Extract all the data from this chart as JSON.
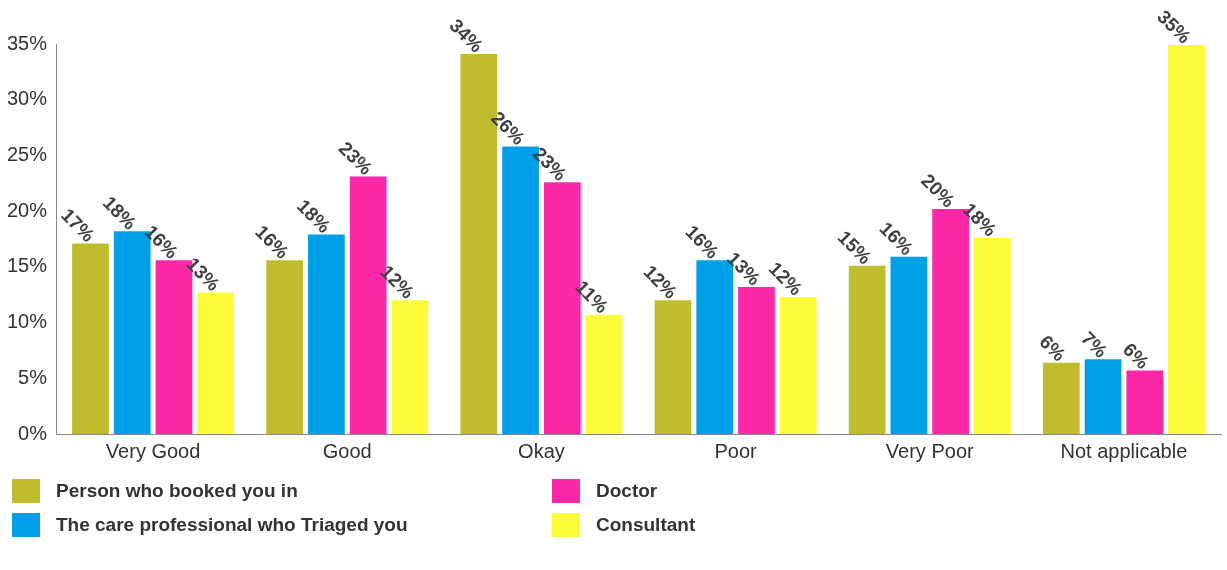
{
  "chart_data": {
    "type": "bar",
    "categories": [
      "Very Good",
      "Good",
      "Okay",
      "Poor",
      "Very Poor",
      "Not applicable"
    ],
    "series": [
      {
        "name": "Person who booked you in",
        "color": "#c0bc2f",
        "values": [
          17.1,
          15.6,
          34.1,
          12.0,
          15.1,
          6.4
        ],
        "value_labels": [
          "17%",
          "16%",
          "34%",
          "12%",
          "15%",
          "6%"
        ]
      },
      {
        "name": "The care professional who Triaged you",
        "color": "#00a0e8",
        "values": [
          18.2,
          17.9,
          25.8,
          15.6,
          15.9,
          6.7
        ],
        "value_labels": [
          "18%",
          "18%",
          "26%",
          "16%",
          "16%",
          "7%"
        ]
      },
      {
        "name": "Doctor",
        "color": "#fb29a8",
        "values": [
          15.6,
          23.1,
          22.6,
          13.2,
          20.2,
          5.7
        ],
        "value_labels": [
          "16%",
          "23%",
          "23%",
          "13%",
          "20%",
          "6%"
        ]
      },
      {
        "name": "Consultant",
        "color": "#fdfc3a",
        "values": [
          12.7,
          12.0,
          10.7,
          12.3,
          17.6,
          34.9
        ],
        "value_labels": [
          "13%",
          "12%",
          "11%",
          "12%",
          "18%",
          "35%"
        ]
      }
    ],
    "ylim": [
      0,
      35
    ],
    "yticks": [
      {
        "value": 0,
        "label": "0%"
      },
      {
        "value": 5,
        "label": "5%"
      },
      {
        "value": 10,
        "label": "10%"
      },
      {
        "value": 15,
        "label": "15%"
      },
      {
        "value": 20,
        "label": "20%"
      },
      {
        "value": 25,
        "label": "25%"
      },
      {
        "value": 30,
        "label": "30%"
      },
      {
        "value": 35,
        "label": "35%"
      }
    ],
    "grid": false,
    "legend": "bottom"
  }
}
